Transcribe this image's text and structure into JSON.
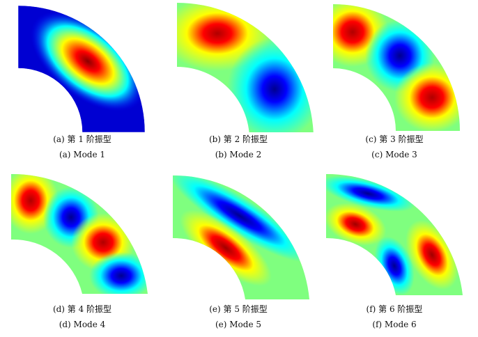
{
  "colormap": [
    "#00008f",
    "#0000ff",
    "#00ffff",
    "#7fff7f",
    "#ffff00",
    "#ff0000",
    "#800000"
  ],
  "background_color": "#7fff7f",
  "panels": [
    {
      "id": "a",
      "caption_cn": "(a) 第 1 阶振型",
      "caption_en": "(a) Mode 1"
    },
    {
      "id": "b",
      "caption_cn": "(b) 第 2 阶振型",
      "caption_en": "(b) Mode 2"
    },
    {
      "id": "c",
      "caption_cn": "(c) 第 3 阶振型",
      "caption_en": "(c) Mode 3"
    },
    {
      "id": "d",
      "caption_cn": "(d) 第 4 阶振型",
      "caption_en": "(d) Mode 4"
    },
    {
      "id": "e",
      "caption_cn": "(e) 第 5 阶振型",
      "caption_en": "(e) Mode 5"
    },
    {
      "id": "f",
      "caption_cn": "(f) 第 6 阶振型",
      "caption_en": "(f) Mode 6"
    }
  ]
}
